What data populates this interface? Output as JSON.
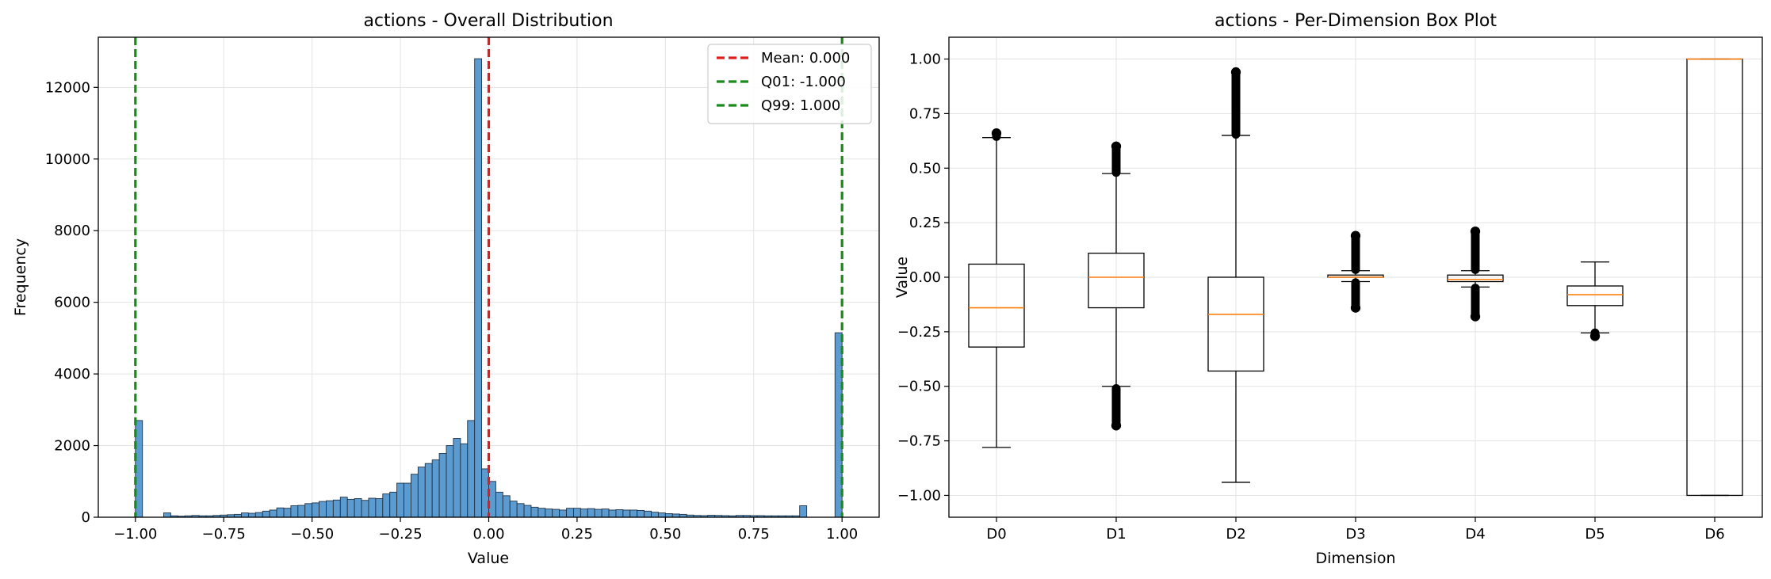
{
  "chart_data": [
    {
      "type": "bar",
      "title": "actions - Overall Distribution",
      "xlabel": "Value",
      "ylabel": "Frequency",
      "xlim": [
        -1.105,
        1.105
      ],
      "ylim": [
        0,
        13400
      ],
      "x_ticks": [
        -1.0,
        -0.75,
        -0.5,
        -0.25,
        0.0,
        0.25,
        0.5,
        0.75,
        1.0
      ],
      "x_tick_labels": [
        "−1.00",
        "−0.75",
        "−0.50",
        "−0.25",
        "0.00",
        "0.25",
        "0.50",
        "0.75",
        "1.00"
      ],
      "y_ticks": [
        0,
        2000,
        4000,
        6000,
        8000,
        10000,
        12000
      ],
      "y_tick_labels": [
        "0",
        "2000",
        "4000",
        "6000",
        "8000",
        "10000",
        "12000"
      ],
      "grid": true,
      "bin_start": -1.0,
      "bin_width": 0.02,
      "bar_color": "#5b9bd0",
      "values": [
        2700,
        0,
        0,
        0,
        120,
        40,
        30,
        40,
        50,
        40,
        40,
        50,
        60,
        70,
        80,
        120,
        110,
        130,
        170,
        200,
        260,
        250,
        320,
        330,
        380,
        400,
        440,
        460,
        480,
        560,
        500,
        520,
        470,
        530,
        520,
        650,
        700,
        950,
        950,
        1200,
        1400,
        1500,
        1600,
        1780,
        2000,
        2200,
        2050,
        2700,
        12800,
        1350,
        1000,
        700,
        600,
        450,
        380,
        330,
        280,
        250,
        230,
        220,
        200,
        250,
        250,
        230,
        240,
        220,
        230,
        200,
        210,
        200,
        200,
        190,
        170,
        140,
        120,
        100,
        90,
        80,
        60,
        50,
        45,
        55,
        50,
        45,
        40,
        50,
        50,
        45,
        45,
        40,
        40,
        40,
        40,
        40,
        320,
        0,
        0,
        0,
        0,
        5150
      ],
      "lines": [
        {
          "name": "Mean: 0.000",
          "x": 0.0,
          "color": "#e01c1c"
        },
        {
          "name": "Q01: -1.000",
          "x": -1.0,
          "color": "#1a8a1a"
        },
        {
          "name": "Q99: 1.000",
          "x": 1.0,
          "color": "#1a8a1a"
        }
      ],
      "legend": "top-right"
    },
    {
      "type": "box",
      "title": "actions - Per-Dimension Box Plot",
      "xlabel": "Dimension",
      "ylabel": "Value",
      "ylim": [
        -1.1,
        1.1
      ],
      "y_ticks": [
        -1.0,
        -0.75,
        -0.5,
        -0.25,
        0.0,
        0.25,
        0.5,
        0.75,
        1.0
      ],
      "y_tick_labels": [
        "−1.00",
        "−0.75",
        "−0.50",
        "−0.25",
        "0.00",
        "0.25",
        "0.50",
        "0.75",
        "1.00"
      ],
      "grid": true,
      "categories": [
        "D0",
        "D1",
        "D2",
        "D3",
        "D4",
        "D5",
        "D6"
      ],
      "boxes": [
        {
          "q1": -0.32,
          "median": -0.14,
          "q3": 0.06,
          "wlo": -0.78,
          "whi": 0.64,
          "outliers_lo": [],
          "outliers_hi": [
            0.645,
            0.66
          ]
        },
        {
          "q1": -0.14,
          "median": 0.0,
          "q3": 0.11,
          "wlo": -0.5,
          "whi": 0.475,
          "outliers_lo": [
            -0.51,
            -0.68
          ],
          "outliers_hi": [
            0.48,
            0.6
          ]
        },
        {
          "q1": -0.43,
          "median": -0.17,
          "q3": 0.0,
          "wlo": -0.94,
          "whi": 0.65,
          "outliers_lo": [],
          "outliers_hi": [
            0.655,
            0.94
          ]
        },
        {
          "q1": -0.0,
          "median": 0.0,
          "q3": 0.01,
          "wlo": -0.02,
          "whi": 0.03,
          "outliers_lo": [
            -0.025,
            -0.14
          ],
          "outliers_hi": [
            0.035,
            0.19
          ]
        },
        {
          "q1": -0.02,
          "median": -0.01,
          "q3": 0.01,
          "wlo": -0.045,
          "whi": 0.03,
          "outliers_lo": [
            -0.05,
            -0.18
          ],
          "outliers_hi": [
            0.035,
            0.21
          ]
        },
        {
          "q1": -0.13,
          "median": -0.08,
          "q3": -0.04,
          "wlo": -0.255,
          "whi": 0.07,
          "outliers_lo": [
            -0.255,
            -0.27
          ],
          "outliers_hi": []
        },
        {
          "q1": -1.0,
          "median": 1.0,
          "q3": 1.0,
          "wlo": -1.0,
          "whi": 1.0,
          "outliers_lo": [],
          "outliers_hi": []
        }
      ],
      "median_color": "#ff7f0e"
    }
  ]
}
